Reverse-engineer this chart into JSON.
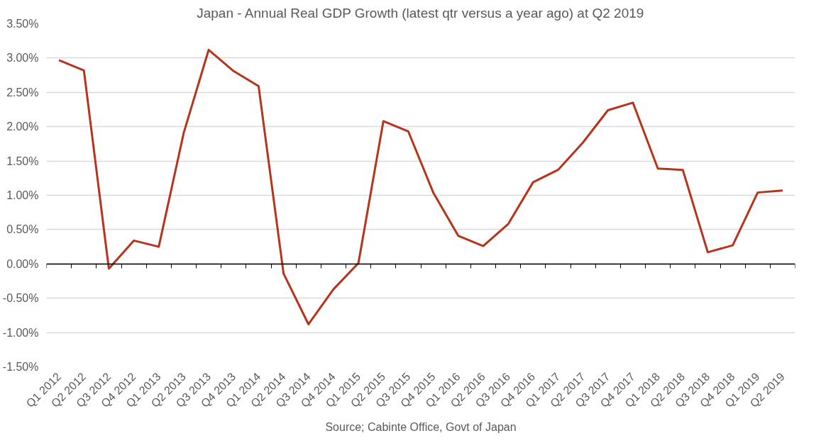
{
  "chart_data": {
    "type": "line",
    "title": "Japan - Annual Real GDP Growth (latest qtr versus a year ago) at Q2 2019",
    "categories": [
      "Q1 2012",
      "Q2 2012",
      "Q3 2012",
      "Q4 2012",
      "Q1 2013",
      "Q2 2013",
      "Q3 2013",
      "Q4 2013",
      "Q1 2014",
      "Q2 2014",
      "Q3 2014",
      "Q4 2014",
      "Q1 2015",
      "Q2 2015",
      "Q3 2015",
      "Q4 2015",
      "Q1 2016",
      "Q2 2016",
      "Q3 2016",
      "Q4 2016",
      "Q1 2017",
      "Q2 2017",
      "Q3 2017",
      "Q4 2017",
      "Q1 2018",
      "Q2 2018",
      "Q3 2018",
      "Q4 2018",
      "Q1 2019",
      "Q2 2019"
    ],
    "series": [
      {
        "color": "#b5341b",
        "values": [
          2.97,
          2.82,
          -0.07,
          0.34,
          0.25,
          1.91,
          3.12,
          2.81,
          2.59,
          -0.14,
          -0.88,
          -0.37,
          0.01,
          2.08,
          1.93,
          1.04,
          0.41,
          0.26,
          0.58,
          1.19,
          1.37,
          1.77,
          2.24,
          2.35,
          1.39,
          1.37,
          0.17,
          0.27,
          1.04,
          1.07
        ]
      }
    ],
    "ylim": [
      -1.5,
      3.5
    ],
    "yticks": [
      {
        "value": -1.5,
        "label": "-1.50%"
      },
      {
        "value": -1,
        "label": "-1.00%"
      },
      {
        "value": -0.5,
        "label": "-0.50%"
      },
      {
        "value": 0,
        "label": "0.00%"
      },
      {
        "value": 0.5,
        "label": "0.50%"
      },
      {
        "value": 1,
        "label": "1.00%"
      },
      {
        "value": 1.5,
        "label": "1.50%"
      },
      {
        "value": 2,
        "label": "2.00%"
      },
      {
        "value": 2.5,
        "label": "2.50%"
      },
      {
        "value": 3,
        "label": "3.00%"
      },
      {
        "value": 3.5,
        "label": "3.50%"
      }
    ],
    "grid": "y",
    "marker": "none",
    "line_style": "solid",
    "annotations": [
      "Source; Cabinte Office, Govt of Japan"
    ]
  }
}
